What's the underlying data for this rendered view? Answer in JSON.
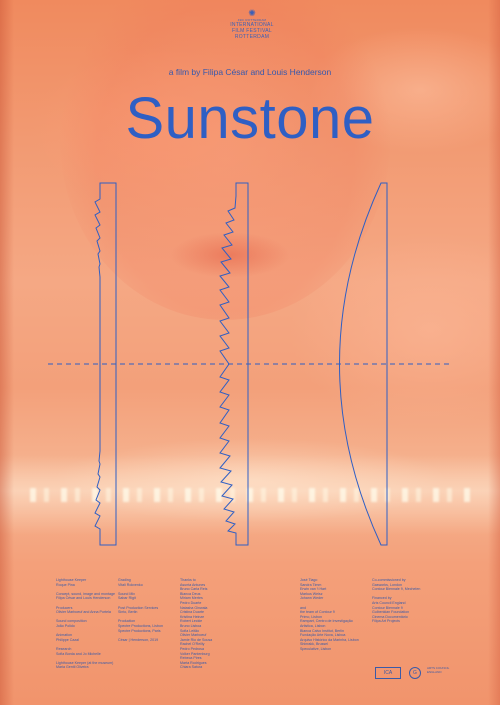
{
  "festival": {
    "small_top": "49th ROTTERDAM",
    "line1": "INTERNATIONAL",
    "line2": "FILM FESTIVAL",
    "line3": "ROTTERDAM"
  },
  "credit_line": "a film by Filipa César and Louis Henderson",
  "title": "Sunstone",
  "credits": {
    "col1": [
      "Lighthouse Keeper",
      "Roque Pina",
      "",
      "Concept, sound, image and montage",
      "Filipa César and Louis Henderson",
      "",
      "Producers",
      "Olivier Marboeuf and Anna Portela",
      "",
      "Sound composition",
      "João Polido",
      "",
      "Animation",
      "Philippe Cazal",
      "",
      "Research",
      "Sofia Borda and Jo Michelle",
      "",
      "Lighthouse Keeper (at the museum)",
      "Maria Gentil Oliveira"
    ],
    "col2": [
      "Grading",
      "Vitali Rokvenko",
      "",
      "Sound Mix",
      "Sabar Rigit",
      "",
      "Post Production Services",
      "Sinto, Berlin",
      "",
      "Production",
      "Spectre Productions, Lisbon",
      "Spectre Productions, Paris",
      "",
      "César | Henderson, 2019"
    ],
    "col3": [
      "Thanks to",
      "Asunta Antunes",
      "Bruno Carla Reis",
      "Bianca Deus",
      "Miriam Mertes",
      "Pedro Duarte",
      "Natasha Ginwala",
      "Cristina Duarte",
      "Kristina Heinze",
      "Robert Leckie",
      "Bruno Lisboa",
      "Sofia Leitão",
      "Olivier Marboeuf",
      "Jamie Rio de Sousa",
      "Rachel O'Reilly",
      "Pedro Pedrosa",
      "Volker Pantenburg",
      "Rebeca Pires",
      "Marta Rodrigues",
      "Chiara Satura"
    ],
    "col4": [
      "José Tiago",
      "Sandra Timm",
      "Erwin van 't Hart",
      "Markus Weisz",
      "Johann Weder",
      "",
      "and",
      "the team of Contour 9",
      "Primo, Lisbon",
      "Rampart, Centro de Investigação",
      "Artistica, Lisbon",
      "Blanca Calvo Institut, Berlin",
      "Fundação Arte Nova, Lisboa",
      "Arquivo Histórico da Marinha, Lisbon",
      "Shinrakk, Brussel",
      "Speculative, Lisbon"
    ],
    "col5": [
      "Co-commissioned by",
      "Gasworks, London",
      "Contour Biennale 9, Mechelen",
      "",
      "Financed by",
      "Arts Council England",
      "Contour Biennale 9",
      "Gulbenkian Foundation",
      "Cinema Documentário",
      "Filipa Art Projects"
    ]
  },
  "bottom_logos": {
    "mark1": "ICA",
    "mark2": "G",
    "mark3": "ARTS COUNCIL ENGLAND"
  },
  "colors": {
    "ink": "#2f5fc4",
    "background": "#f29a72"
  },
  "icons": [
    "festival-logo-icon",
    "lens-diagram-icon"
  ]
}
